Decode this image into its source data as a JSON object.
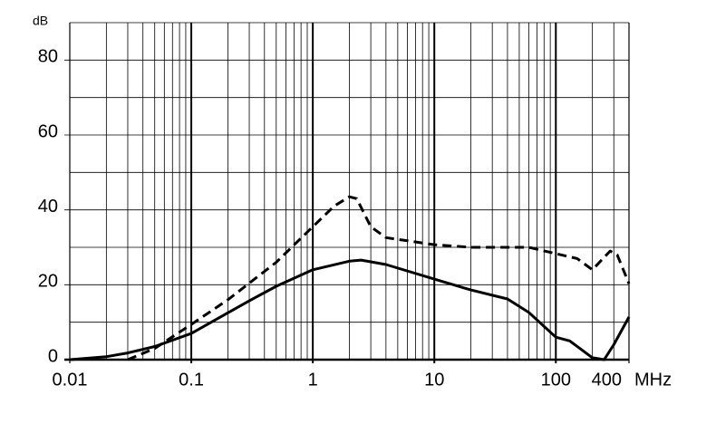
{
  "chart_data": {
    "type": "line",
    "y_label": "dB",
    "x_label": "MHz",
    "log_x": true,
    "xlim": [
      0.01,
      400
    ],
    "xticks": [
      0.01,
      0.1,
      1,
      10,
      100,
      400
    ],
    "xgrid": [
      0.02,
      0.03,
      0.04,
      0.05,
      0.06,
      0.07,
      0.08,
      0.09,
      0.2,
      0.3,
      0.4,
      0.5,
      0.6,
      0.7,
      0.8,
      0.9,
      2,
      3,
      4,
      5,
      6,
      7,
      8,
      9,
      20,
      30,
      40,
      50,
      60,
      70,
      80,
      90,
      200,
      300
    ],
    "ylim": [
      0,
      90
    ],
    "yticks": [
      0,
      20,
      40,
      60,
      80
    ],
    "ygrid": [
      10,
      30,
      50,
      70,
      90
    ],
    "series": [
      {
        "color": "#000000",
        "style": "solid",
        "x": [
          0.01,
          0.02,
          0.03,
          0.05,
          0.1,
          0.2,
          0.3,
          0.5,
          1,
          2,
          2.5,
          4,
          10,
          20,
          40,
          60,
          100,
          130,
          200,
          250,
          300,
          400
        ],
        "values": [
          0,
          0.8,
          1.8,
          3.5,
          7,
          12.5,
          15.7,
          19.6,
          24,
          26.3,
          26.6,
          25.4,
          21.5,
          18.6,
          16.2,
          12.6,
          6,
          5,
          0.5,
          0,
          4,
          11.4
        ]
      },
      {
        "color": "#000000",
        "style": "dashed",
        "x": [
          0.03,
          0.05,
          0.1,
          0.2,
          0.5,
          1,
          1.5,
          2,
          2.3,
          3,
          4,
          10,
          20,
          60,
          100,
          150,
          200,
          280,
          320,
          400
        ],
        "values": [
          0,
          3,
          9.4,
          16,
          26,
          35.5,
          41,
          43.5,
          43,
          35.5,
          32.6,
          30.7,
          30,
          30,
          28.3,
          27,
          24,
          29,
          28,
          20.3
        ]
      }
    ]
  }
}
